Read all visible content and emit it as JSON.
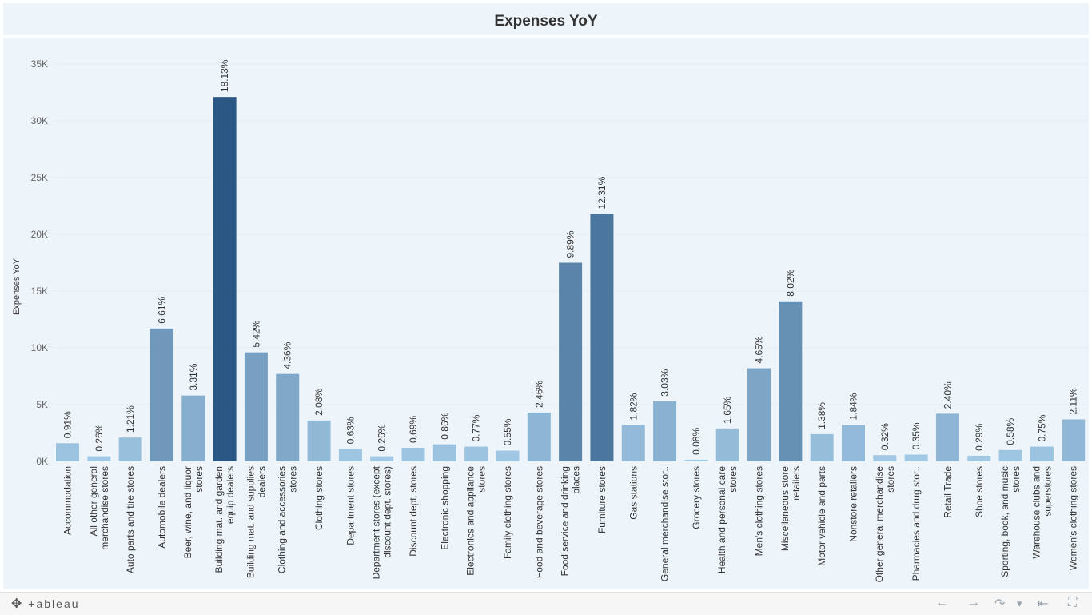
{
  "header": {
    "title": "Expenses YoY"
  },
  "toolbar": {
    "brand_mark": "✥",
    "brand": "+ableau",
    "icons": {
      "undo": "←",
      "redo": "→",
      "revert": "↷",
      "dropdown": "▾",
      "reset": "⇤",
      "fullscreen": "⛶"
    }
  },
  "chart_data": {
    "type": "bar",
    "title": "Expenses YoY",
    "ylabel": "Expenses YoY",
    "xlabel": "",
    "ylim": [
      0,
      35000
    ],
    "yticks": [
      0,
      5000,
      10000,
      15000,
      20000,
      25000,
      30000,
      35000
    ],
    "ytick_labels": [
      "0K",
      "5K",
      "10K",
      "15K",
      "20K",
      "25K",
      "30K",
      "35K"
    ],
    "grid": true,
    "color_scale": {
      "low": "#a6cde8",
      "high": "#2a5783"
    },
    "categories": [
      [
        "Accommodation"
      ],
      [
        "All other general",
        "merchandise stores"
      ],
      [
        "Auto parts and tire stores"
      ],
      [
        "Automobile dealers"
      ],
      [
        "Beer, wine, and liquor",
        "stores"
      ],
      [
        "Building mat. and garden",
        "equip dealers"
      ],
      [
        "Building mat. and supplies",
        "dealers"
      ],
      [
        "Clothing and accessories",
        "stores"
      ],
      [
        "Clothing stores"
      ],
      [
        "Department stores"
      ],
      [
        "Department stores (except",
        "discount dept. stores)"
      ],
      [
        "Discount dept. stores"
      ],
      [
        "Electronic shopping"
      ],
      [
        "Electronics and appliance",
        "stores"
      ],
      [
        "Family clothing stores"
      ],
      [
        "Food and beverage stores"
      ],
      [
        "Food service and drinking",
        "places"
      ],
      [
        "Furniture stores"
      ],
      [
        "Gas stations"
      ],
      [
        "General merchandise stor.."
      ],
      [
        "Grocery stores"
      ],
      [
        "Health and personal care",
        "stores"
      ],
      [
        "Men's clothing stores"
      ],
      [
        "Miscellaneous store",
        "retailers"
      ],
      [
        "Motor vehicle and parts"
      ],
      [
        "Nonstore retailers"
      ],
      [
        "Other general merchandise",
        "stores"
      ],
      [
        "Pharmacies and drug stor.."
      ],
      [
        "Retail Trade"
      ],
      [
        "Shoe stores"
      ],
      [
        "Sporting, book, and music",
        "stores"
      ],
      [
        "Warehouse clubs and",
        "superstores"
      ],
      [
        "Women's clothing stores"
      ]
    ],
    "values": [
      1600,
      450,
      2100,
      11700,
      5800,
      32100,
      9600,
      7700,
      3600,
      1100,
      450,
      1200,
      1500,
      1300,
      950,
      4300,
      17500,
      21800,
      3200,
      5300,
      150,
      2900,
      8200,
      14100,
      2400,
      3200,
      550,
      600,
      4200,
      500,
      1000,
      1300,
      3700
    ],
    "data_labels": [
      "0.91%",
      "0.26%",
      "1.21%",
      "6.61%",
      "3.31%",
      "18.13%",
      "5.42%",
      "4.36%",
      "2.08%",
      "0.63%",
      "0.26%",
      "0.69%",
      "0.86%",
      "0.77%",
      "0.55%",
      "2.46%",
      "9.89%",
      "12.31%",
      "1.82%",
      "3.03%",
      "0.08%",
      "1.65%",
      "4.65%",
      "8.02%",
      "1.38%",
      "1.84%",
      "0.32%",
      "0.35%",
      "2.40%",
      "0.29%",
      "0.58%",
      "0.75%",
      "2.11%"
    ]
  }
}
